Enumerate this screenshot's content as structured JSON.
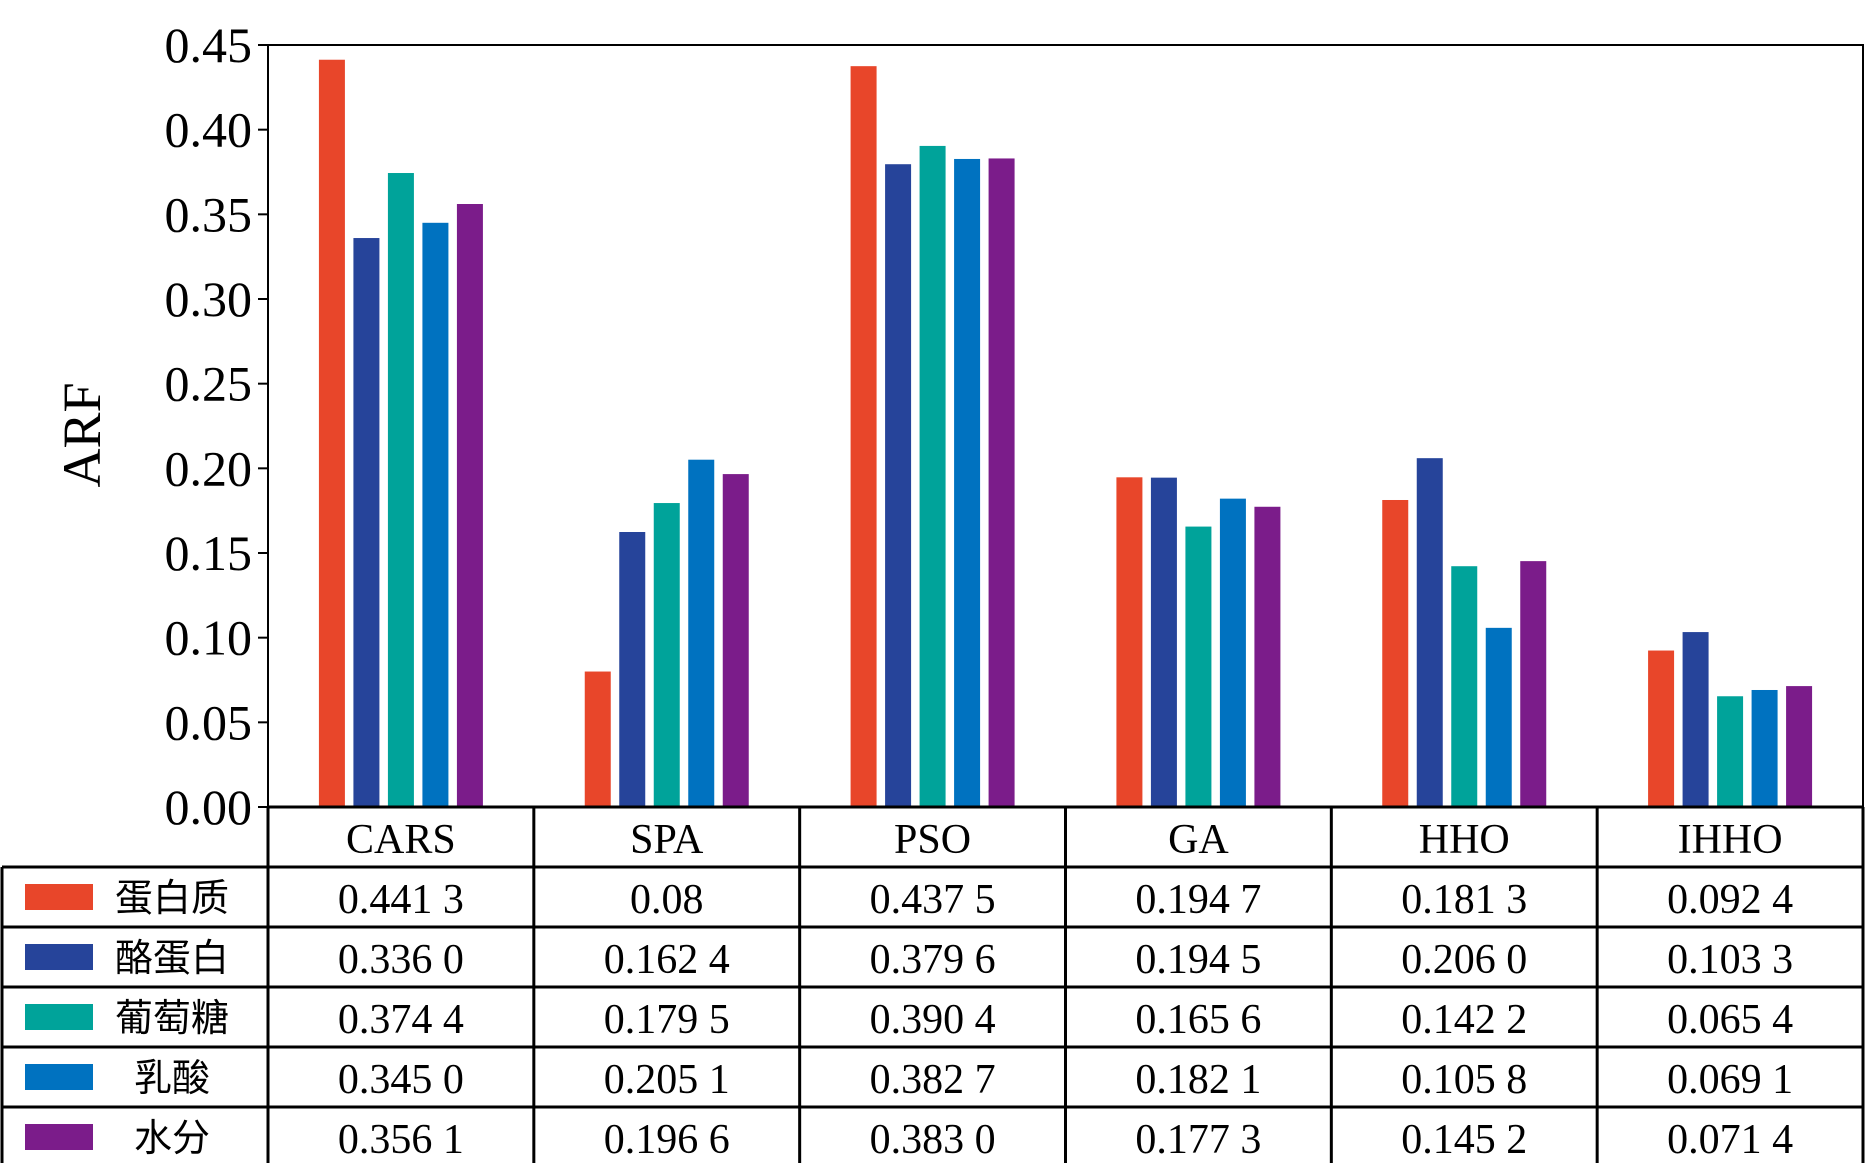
{
  "chart_data": {
    "type": "bar",
    "ylabel": "ARF",
    "ylim": [
      0,
      0.45
    ],
    "yticks": [
      "0.00",
      "0.05",
      "0.10",
      "0.15",
      "0.20",
      "0.25",
      "0.30",
      "0.35",
      "0.40",
      "0.45"
    ],
    "grid": false,
    "legend_placement": "table-left",
    "categories": [
      "CARS",
      "SPA",
      "PSO",
      "GA",
      "HHO",
      "IHHO"
    ],
    "series": [
      {
        "name": "蛋白质",
        "color": "#E8462A",
        "values": [
          0.4413,
          0.08,
          0.4375,
          0.1947,
          0.1813,
          0.0924
        ],
        "labels": [
          "0.441 3",
          "0.08",
          "0.437 5",
          "0.194 7",
          "0.181 3",
          "0.092 4"
        ]
      },
      {
        "name": "酪蛋白",
        "color": "#26449A",
        "values": [
          0.336,
          0.1624,
          0.3796,
          0.1945,
          0.206,
          0.1033
        ],
        "labels": [
          "0.336 0",
          "0.162 4",
          "0.379 6",
          "0.194 5",
          "0.206 0",
          "0.103 3"
        ]
      },
      {
        "name": "葡萄糖",
        "color": "#00A39A",
        "values": [
          0.3744,
          0.1795,
          0.3904,
          0.1656,
          0.1422,
          0.0654
        ],
        "labels": [
          "0.374 4",
          "0.179 5",
          "0.390 4",
          "0.165 6",
          "0.142 2",
          "0.065 4"
        ]
      },
      {
        "name": "乳酸",
        "color": "#0072C0",
        "values": [
          0.345,
          0.2051,
          0.3827,
          0.1821,
          0.1058,
          0.0691
        ],
        "labels": [
          "0.345 0",
          "0.205 1",
          "0.382 7",
          "0.182 1",
          "0.105 8",
          "0.069 1"
        ]
      },
      {
        "name": "水分",
        "color": "#7B1C8A",
        "values": [
          0.3561,
          0.1966,
          0.383,
          0.1773,
          0.1452,
          0.0714
        ],
        "labels": [
          "0.356 1",
          "0.196 6",
          "0.383 0",
          "0.177 3",
          "0.145 2",
          "0.071 4"
        ]
      }
    ]
  }
}
